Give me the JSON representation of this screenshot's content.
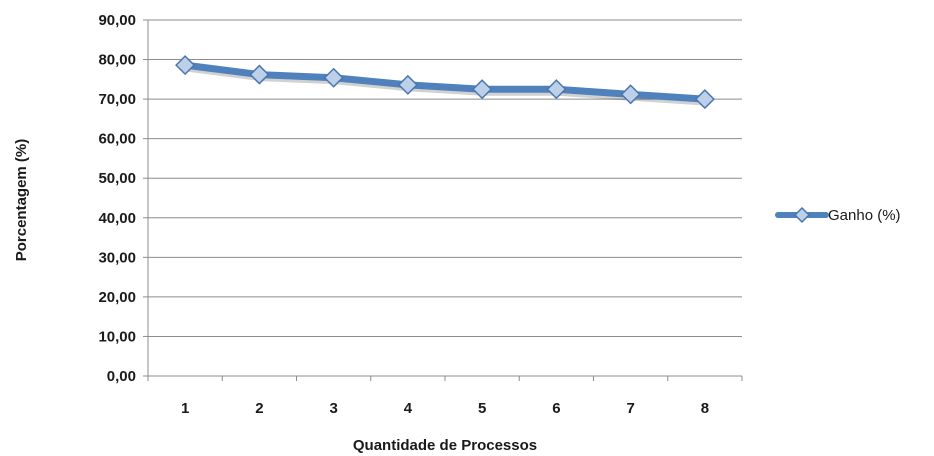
{
  "chart_data": {
    "type": "line",
    "title": "",
    "xlabel": "Quantidade de Processos",
    "ylabel": "Porcentagem (%)",
    "categories": [
      "1",
      "2",
      "3",
      "4",
      "5",
      "6",
      "7",
      "8"
    ],
    "yticks": [
      "0,00",
      "10,00",
      "20,00",
      "30,00",
      "40,00",
      "50,00",
      "60,00",
      "70,00",
      "80,00",
      "90,00"
    ],
    "ylim": [
      0,
      90
    ],
    "grid": true,
    "legend_position": "right",
    "series": [
      {
        "name": "Ganho (%)",
        "values": [
          78.6,
          76.2,
          75.4,
          73.6,
          72.5,
          72.5,
          71.2,
          70.0
        ],
        "color": "#4f81bd",
        "marker": "diamond"
      }
    ]
  }
}
